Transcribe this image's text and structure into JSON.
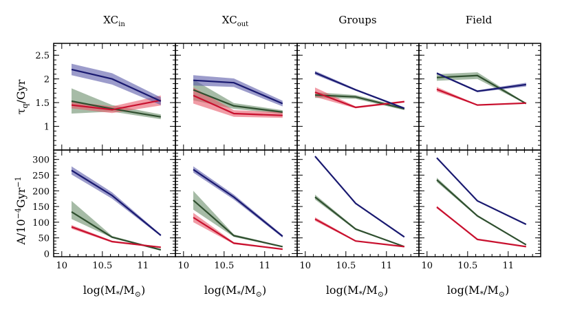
{
  "figure": {
    "columns": [
      {
        "title": "XC",
        "sub": "in"
      },
      {
        "title": "XC",
        "sub": "out"
      },
      {
        "title": "Groups",
        "sub": ""
      },
      {
        "title": "Field",
        "sub": ""
      }
    ],
    "xlabel": {
      "pre": "log(M",
      "sub": "*",
      "mid": "/M",
      "sub2": "⊙",
      "post": ")"
    },
    "row_labels": [
      {
        "pre": "τ",
        "sub": "q",
        "post": "/Gyr",
        "sup": ""
      },
      {
        "pre": "A/10",
        "sup": "−4",
        "mid": "Gyr",
        "sup2": "−1"
      }
    ]
  },
  "colors": {
    "blue": "#191970",
    "blue_band": "#5a5aa8",
    "red": "#c8102e",
    "red_band": "#e85a6a",
    "green": "#2f4f2f",
    "green_band": "#6b8e6b"
  },
  "chart_data": [
    {
      "type": "line",
      "row": "tau_q",
      "column": "XC_in",
      "xlim": [
        9.9,
        11.4
      ],
      "ylim": [
        0.5,
        2.75
      ],
      "xticks": [
        10,
        10.5,
        11
      ],
      "yticks": [
        1,
        1.5,
        2,
        2.5
      ],
      "ytick_labels": [
        "1",
        "1.5",
        "2",
        "2.5"
      ],
      "x": [
        10.12,
        10.62,
        11.22
      ],
      "series": [
        {
          "name": "blue",
          "values": [
            2.2,
            2.0,
            1.53
          ],
          "lower": [
            2.08,
            1.88,
            1.45
          ],
          "upper": [
            2.32,
            2.12,
            1.61
          ]
        },
        {
          "name": "red",
          "values": [
            1.45,
            1.35,
            1.55
          ],
          "lower": [
            1.38,
            1.28,
            1.44
          ],
          "upper": [
            1.52,
            1.42,
            1.65
          ]
        },
        {
          "name": "green",
          "values": [
            1.53,
            1.37,
            1.2
          ],
          "lower": [
            1.27,
            1.31,
            1.15
          ],
          "upper": [
            1.8,
            1.45,
            1.25
          ]
        }
      ]
    },
    {
      "type": "line",
      "row": "tau_q",
      "column": "XC_out",
      "xlim": [
        9.9,
        11.4
      ],
      "ylim": [
        0.5,
        2.75
      ],
      "xticks": [
        10,
        10.5,
        11
      ],
      "yticks": [
        1,
        1.5,
        2,
        2.5
      ],
      "ytick_labels": [],
      "x": [
        10.12,
        10.62,
        11.22
      ],
      "series": [
        {
          "name": "blue",
          "values": [
            1.97,
            1.92,
            1.48
          ],
          "lower": [
            1.86,
            1.83,
            1.42
          ],
          "upper": [
            2.08,
            2.01,
            1.54
          ]
        },
        {
          "name": "red",
          "values": [
            1.65,
            1.27,
            1.23
          ],
          "lower": [
            1.48,
            1.2,
            1.18
          ],
          "upper": [
            1.82,
            1.34,
            1.3
          ]
        },
        {
          "name": "green",
          "values": [
            1.77,
            1.43,
            1.3
          ],
          "lower": [
            1.55,
            1.37,
            1.26
          ],
          "upper": [
            1.99,
            1.49,
            1.34
          ]
        }
      ]
    },
    {
      "type": "line",
      "row": "tau_q",
      "column": "Groups",
      "xlim": [
        9.9,
        11.4
      ],
      "ylim": [
        0.5,
        2.75
      ],
      "xticks": [
        10,
        10.5,
        11
      ],
      "yticks": [
        1,
        1.5,
        2,
        2.5
      ],
      "ytick_labels": [],
      "x": [
        10.12,
        10.62,
        11.22
      ],
      "series": [
        {
          "name": "blue",
          "values": [
            2.13,
            1.77,
            1.38
          ],
          "lower": [
            2.09,
            1.75,
            1.36
          ],
          "upper": [
            2.17,
            1.79,
            1.4
          ]
        },
        {
          "name": "red",
          "values": [
            1.72,
            1.4,
            1.52
          ],
          "lower": [
            1.62,
            1.38,
            1.5
          ],
          "upper": [
            1.82,
            1.42,
            1.54
          ]
        },
        {
          "name": "green",
          "values": [
            1.66,
            1.62,
            1.37
          ],
          "lower": [
            1.6,
            1.58,
            1.34
          ],
          "upper": [
            1.72,
            1.66,
            1.4
          ]
        }
      ]
    },
    {
      "type": "line",
      "row": "tau_q",
      "column": "Field",
      "xlim": [
        9.9,
        11.4
      ],
      "ylim": [
        0.5,
        2.75
      ],
      "xticks": [
        10,
        10.5,
        11
      ],
      "yticks": [
        1,
        1.5,
        2,
        2.5
      ],
      "ytick_labels": [],
      "x": [
        10.12,
        10.62,
        11.22
      ],
      "series": [
        {
          "name": "blue",
          "values": [
            2.12,
            1.74,
            1.88
          ],
          "lower": [
            2.1,
            1.72,
            1.84
          ],
          "upper": [
            2.14,
            1.76,
            1.92
          ]
        },
        {
          "name": "red",
          "values": [
            1.78,
            1.45,
            1.49
          ],
          "lower": [
            1.73,
            1.44,
            1.48
          ],
          "upper": [
            1.83,
            1.46,
            1.5
          ]
        },
        {
          "name": "green",
          "values": [
            2.03,
            2.07,
            1.48
          ],
          "lower": [
            1.96,
            2.0,
            1.47
          ],
          "upper": [
            2.1,
            2.14,
            1.49
          ]
        }
      ]
    },
    {
      "type": "line",
      "row": "A",
      "column": "XC_in",
      "xlim": [
        9.9,
        11.4
      ],
      "ylim": [
        -10,
        330
      ],
      "xticks": [
        10,
        10.5,
        11
      ],
      "xtick_labels": [
        "10",
        "10.5",
        "11"
      ],
      "yticks": [
        0,
        50,
        100,
        150,
        200,
        250,
        300
      ],
      "ytick_labels": [
        "0",
        "50",
        "100",
        "150",
        "200",
        "250",
        "300"
      ],
      "x": [
        10.12,
        10.62,
        11.22
      ],
      "series": [
        {
          "name": "blue",
          "values": [
            265,
            185,
            58
          ],
          "lower": [
            252,
            175,
            55
          ],
          "upper": [
            278,
            195,
            61
          ]
        },
        {
          "name": "red",
          "values": [
            85,
            38,
            20
          ],
          "lower": [
            79,
            35,
            18
          ],
          "upper": [
            91,
            41,
            22
          ]
        },
        {
          "name": "green",
          "values": [
            133,
            52,
            12
          ],
          "lower": [
            110,
            50,
            10
          ],
          "upper": [
            168,
            56,
            14
          ]
        }
      ]
    },
    {
      "type": "line",
      "row": "A",
      "column": "XC_out",
      "xlim": [
        9.9,
        11.4
      ],
      "ylim": [
        -10,
        330
      ],
      "xticks": [
        10,
        10.5,
        11
      ],
      "xtick_labels": [
        "10",
        "10.5",
        "11"
      ],
      "yticks": [
        0,
        50,
        100,
        150,
        200,
        250,
        300
      ],
      "ytick_labels": [],
      "x": [
        10.12,
        10.62,
        11.22
      ],
      "series": [
        {
          "name": "blue",
          "values": [
            268,
            180,
            55
          ],
          "lower": [
            258,
            172,
            51
          ],
          "upper": [
            278,
            188,
            59
          ]
        },
        {
          "name": "red",
          "values": [
            115,
            33,
            14
          ],
          "lower": [
            100,
            30,
            12
          ],
          "upper": [
            130,
            36,
            16
          ]
        },
        {
          "name": "green",
          "values": [
            170,
            57,
            22
          ],
          "lower": [
            140,
            53,
            20
          ],
          "upper": [
            200,
            61,
            24
          ]
        }
      ]
    },
    {
      "type": "line",
      "row": "A",
      "column": "Groups",
      "xlim": [
        9.9,
        11.4
      ],
      "ylim": [
        -10,
        330
      ],
      "xticks": [
        10,
        10.5,
        11
      ],
      "xtick_labels": [
        "10",
        "10.5",
        "11"
      ],
      "yticks": [
        0,
        50,
        100,
        150,
        200,
        250,
        300
      ],
      "ytick_labels": [],
      "x": [
        10.12,
        10.62,
        11.22
      ],
      "series": [
        {
          "name": "blue",
          "values": [
            310,
            160,
            53
          ],
          "lower": [
            308,
            158,
            52
          ],
          "upper": [
            312,
            162,
            54
          ]
        },
        {
          "name": "red",
          "values": [
            110,
            40,
            22
          ],
          "lower": [
            104,
            38,
            21
          ],
          "upper": [
            116,
            42,
            23
          ]
        },
        {
          "name": "green",
          "values": [
            180,
            78,
            22
          ],
          "lower": [
            172,
            75,
            21
          ],
          "upper": [
            188,
            81,
            23
          ]
        }
      ]
    },
    {
      "type": "line",
      "row": "A",
      "column": "Field",
      "xlim": [
        9.9,
        11.4
      ],
      "ylim": [
        -10,
        330
      ],
      "xticks": [
        10,
        10.5,
        11
      ],
      "xtick_labels": [
        "10",
        "10.5",
        "11"
      ],
      "yticks": [
        0,
        50,
        100,
        150,
        200,
        250,
        300
      ],
      "ytick_labels": [],
      "x": [
        10.12,
        10.62,
        11.22
      ],
      "series": [
        {
          "name": "blue",
          "values": [
            305,
            168,
            93
          ],
          "lower": [
            304,
            167,
            92
          ],
          "upper": [
            306,
            169,
            94
          ]
        },
        {
          "name": "red",
          "values": [
            148,
            45,
            22
          ],
          "lower": [
            144,
            44,
            21
          ],
          "upper": [
            152,
            46,
            23
          ]
        },
        {
          "name": "green",
          "values": [
            235,
            120,
            28
          ],
          "lower": [
            228,
            117,
            27
          ],
          "upper": [
            242,
            123,
            29
          ]
        }
      ]
    }
  ]
}
